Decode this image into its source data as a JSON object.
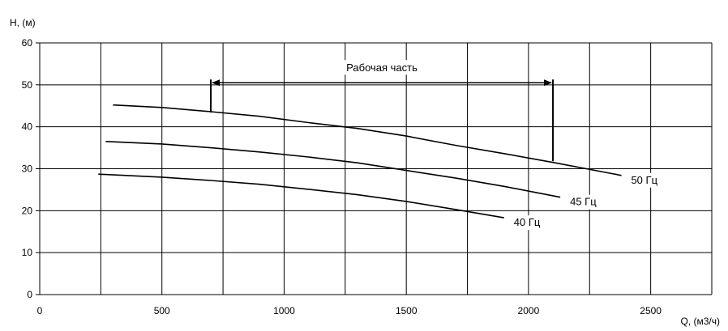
{
  "chart_data": {
    "type": "line",
    "xlabel": "Q, (м3/ч)",
    "ylabel": "H, (м)",
    "xlim": [
      0,
      2750
    ],
    "ylim": [
      0,
      60
    ],
    "xticks": [
      0,
      500,
      1000,
      1500,
      2000,
      2500
    ],
    "yticks": [
      0,
      10,
      20,
      30,
      40,
      50,
      60
    ],
    "grid": true,
    "series": [
      {
        "name": "50 Гц",
        "x": [
          300,
          500,
          700,
          900,
          1100,
          1300,
          1500,
          1700,
          1900,
          2100,
          2300,
          2380
        ],
        "y": [
          45.2,
          44.6,
          43.6,
          42.5,
          41.0,
          39.6,
          37.8,
          35.6,
          33.6,
          31.5,
          29.3,
          28.4
        ]
      },
      {
        "name": "45 Гц",
        "x": [
          270,
          500,
          700,
          900,
          1100,
          1300,
          1500,
          1700,
          1900,
          2130
        ],
        "y": [
          36.5,
          35.9,
          35.0,
          34.0,
          32.8,
          31.4,
          29.6,
          27.8,
          25.8,
          23.2
        ]
      },
      {
        "name": "40 Гц",
        "x": [
          240,
          500,
          700,
          900,
          1100,
          1300,
          1500,
          1700,
          1900
        ],
        "y": [
          28.7,
          28.0,
          27.2,
          26.3,
          25.1,
          23.8,
          22.2,
          20.3,
          18.3
        ]
      }
    ],
    "annotation": {
      "text": "Рабочая часть",
      "x_start": 700,
      "x_end": 2100,
      "y": 50.5,
      "left_drop_y": 43.4,
      "right_drop_y": 31.8
    }
  }
}
